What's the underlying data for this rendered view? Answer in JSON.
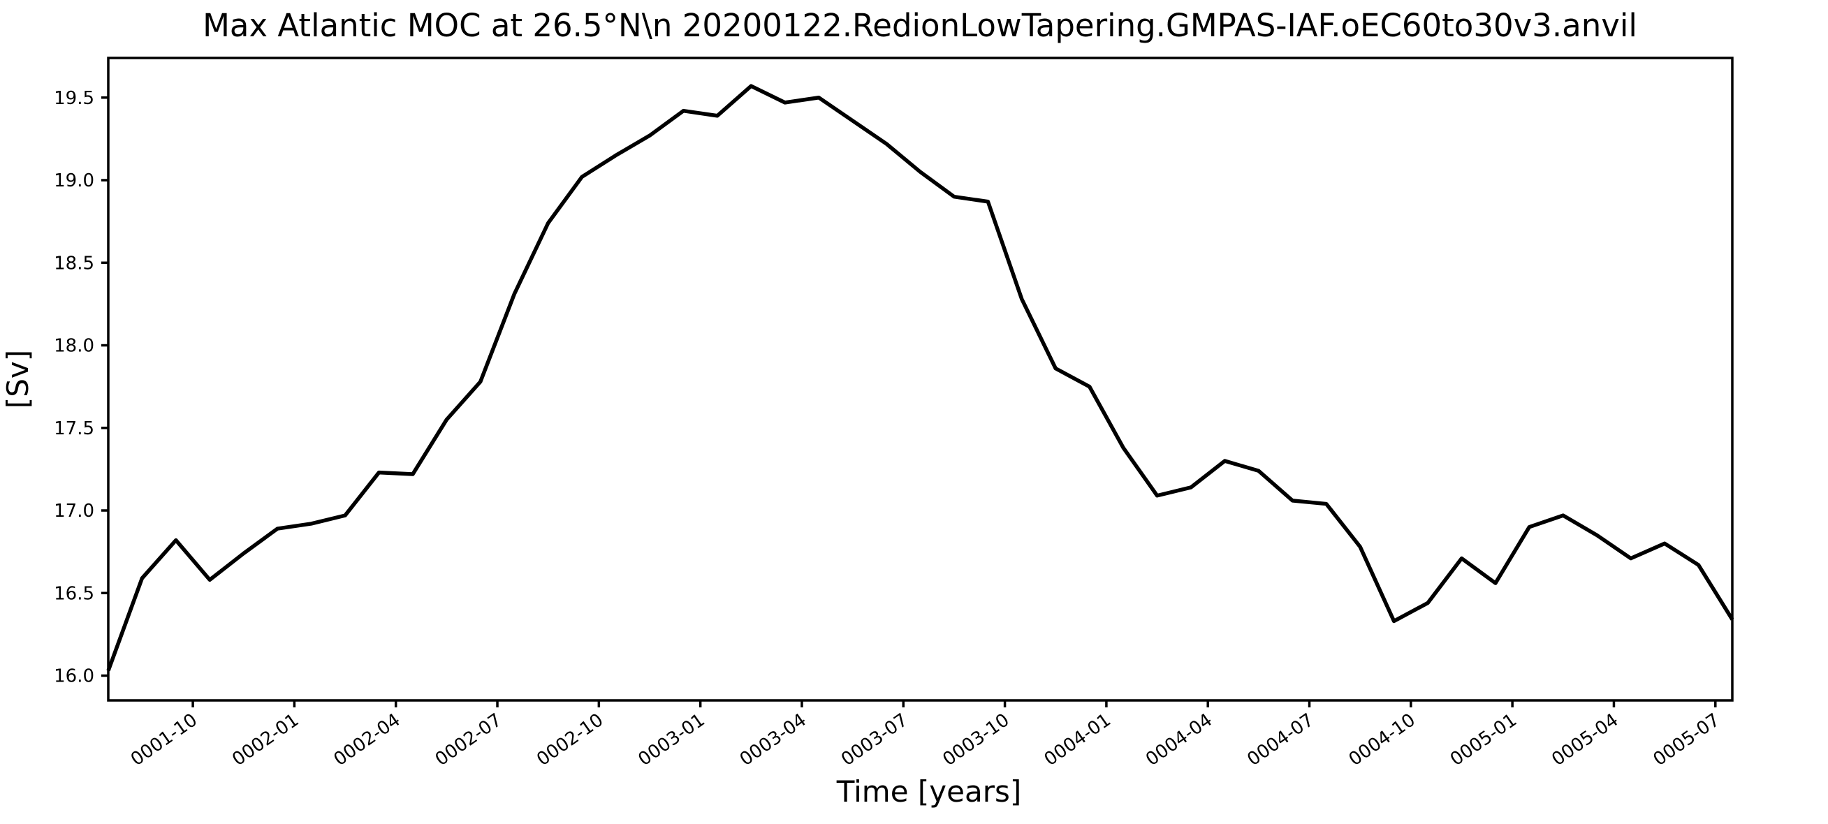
{
  "chart_data": {
    "type": "line",
    "title": "Max Atlantic MOC at 26.5°N\\n 20200122.RedionLowTapering.GMPAS-IAF.oEC60to30v3.anvil",
    "xlabel": "Time [years]",
    "ylabel": "[Sv]",
    "grid": false,
    "legend": "none",
    "background_color": "#ffffff",
    "line_color": "#000000",
    "line_width": 5.5,
    "axis_color": "#000000",
    "xlim_month_index": [
      0,
      48
    ],
    "ylim": [
      15.85,
      19.74
    ],
    "x": [
      "0001-07",
      "0001-08",
      "0001-09",
      "0001-10",
      "0001-11",
      "0001-12",
      "0002-01",
      "0002-02",
      "0002-03",
      "0002-04",
      "0002-05",
      "0002-06",
      "0002-07",
      "0002-08",
      "0002-09",
      "0002-10",
      "0002-11",
      "0002-12",
      "0003-01",
      "0003-02",
      "0003-03",
      "0003-04",
      "0003-05",
      "0003-06",
      "0003-07",
      "0003-08",
      "0003-09",
      "0003-10",
      "0003-11",
      "0003-12",
      "0004-01",
      "0004-02",
      "0004-03",
      "0004-04",
      "0004-05",
      "0004-06",
      "0004-07",
      "0004-08",
      "0004-09",
      "0004-10",
      "0004-11",
      "0004-12",
      "0005-01",
      "0005-02",
      "0005-03",
      "0005-04",
      "0005-05",
      "0005-06",
      "0005-07"
    ],
    "values": [
      16.03,
      16.59,
      16.82,
      16.58,
      16.74,
      16.89,
      16.92,
      16.97,
      17.23,
      17.22,
      17.55,
      17.78,
      18.31,
      18.74,
      19.02,
      19.15,
      19.27,
      19.42,
      19.39,
      19.57,
      19.47,
      19.5,
      19.36,
      19.22,
      19.05,
      18.9,
      18.87,
      18.28,
      17.86,
      17.75,
      17.38,
      17.09,
      17.14,
      17.3,
      17.24,
      17.06,
      17.04,
      16.78,
      16.33,
      16.44,
      16.71,
      16.56,
      16.9,
      16.97,
      16.85,
      16.71,
      16.8,
      16.67,
      16.34
    ],
    "xtick_labels": [
      "0001-10",
      "0002-01",
      "0002-04",
      "0002-07",
      "0002-10",
      "0003-01",
      "0003-04",
      "0003-07",
      "0003-10",
      "0004-01",
      "0004-04",
      "0004-07",
      "0004-10",
      "0005-01",
      "0005-04",
      "0005-07"
    ],
    "xtick_month_offsets": [
      2.5,
      5.5,
      8.5,
      11.5,
      14.5,
      17.5,
      20.5,
      23.5,
      26.5,
      29.5,
      32.5,
      35.5,
      38.5,
      41.5,
      44.5,
      47.5
    ],
    "ytick_labels": [
      "16.0",
      "16.5",
      "17.0",
      "17.5",
      "18.0",
      "18.5",
      "19.0",
      "19.5"
    ],
    "ytick_values": [
      16.0,
      16.5,
      17.0,
      17.5,
      18.0,
      18.5,
      19.0,
      19.5
    ]
  }
}
